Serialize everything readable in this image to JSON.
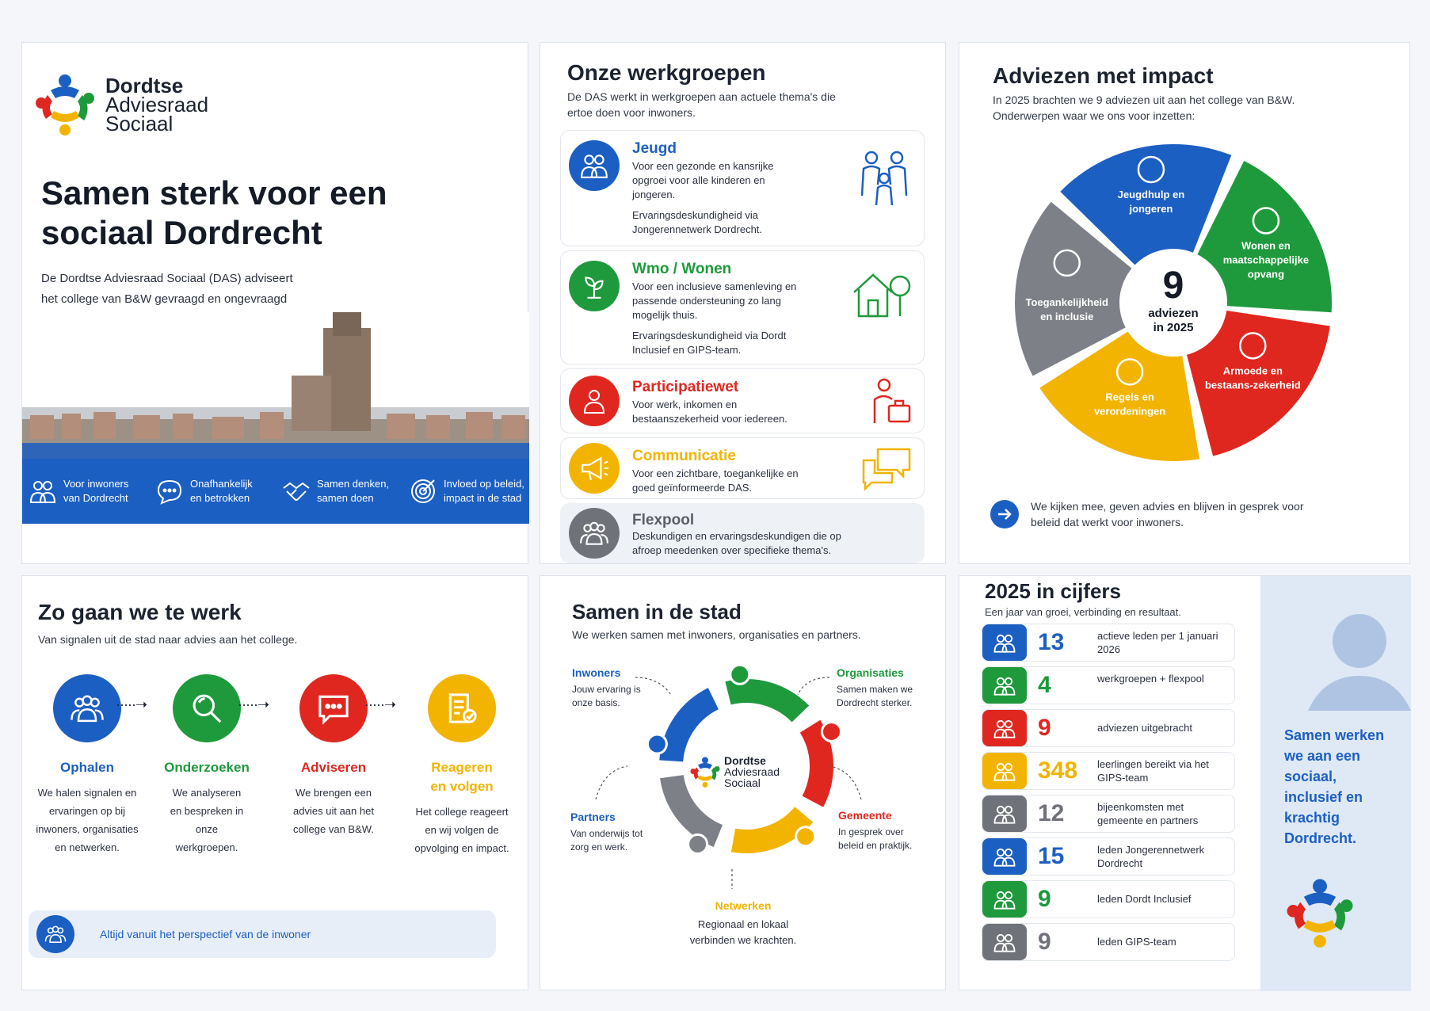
{
  "brand": {
    "line1": "Dordtse",
    "line2": "Adviesraad",
    "line3": "Sociaal"
  },
  "hero": {
    "title": "Samen sterk voor een sociaal Dordrecht",
    "text": "De Dordtse Adviesraad Sociaal (DAS) adviseert het college van B&W gevraagd en ongevraagd over alles wat te maken heeft met het sociaal domein – vanuit het perspectief van inwoners.",
    "bar": [
      {
        "l1": "Voor inwoners",
        "l2": "van Dordrecht",
        "icon": "people-icon"
      },
      {
        "l1": "Onafhankelijk",
        "l2": "en betrokken",
        "icon": "chat-bubble-icon"
      },
      {
        "l1": "Samen denken,",
        "l2": "samen doen",
        "icon": "handshake-icon"
      },
      {
        "l1": "Invloed op beleid,",
        "l2": "impact in de stad",
        "icon": "target-icon"
      }
    ]
  },
  "werkgroepen": {
    "title": "Onze werkgroepen",
    "subtitle": "De DAS werkt in werkgroepen aan actuele thema's die ertoe doen voor inwoners.",
    "items": [
      {
        "title": "Jeugd",
        "color": "#1c5fc2",
        "text": "Voor een gezonde en kansrijke opgroei voor alle kinderen en jongeren.",
        "extra": "Ervaringsdeskundigheid via Jongerennetwerk Dordrecht.",
        "icon": "family-icon"
      },
      {
        "title": "Wmo / Wonen",
        "color": "#1e9a3c",
        "text": "Voor een inclusieve samenleving en passende ondersteuning zo lang mogelijk thuis.",
        "extra": "Ervaringsdeskundigheid via Dordt Inclusief en GIPS-team.",
        "icon": "house-tree-icon"
      },
      {
        "title": "Participatiewet",
        "color": "#e0271f",
        "text": "Voor werk, inkomen en bestaanszekerheid voor iedereen.",
        "extra": "",
        "icon": "worker-briefcase-icon"
      },
      {
        "title": "Communicatie",
        "color": "#f2b400",
        "text": "Voor een zichtbare, toegankelijke en goed geïnformeerde DAS.",
        "extra": "",
        "icon": "megaphone-icon"
      },
      {
        "title": "Flexpool",
        "color": "#6f7278",
        "text": "Deskundigen en ervaringsdeskundigen die op afroep meedenken over specifieke thema's.",
        "extra": "",
        "icon": "group-icon"
      }
    ]
  },
  "adviezen": {
    "title": "Adviezen met impact",
    "subtitle": "In 2025 brachten we 9 adviezen uit aan het college van B&W. Onderwerpen waar we ons voor inzetten:",
    "center_num": "9",
    "center_l1": "adviezen",
    "center_l2": "in 2025",
    "segments": [
      {
        "label": "Jeugdhulp en jongeren",
        "color": "#1c5fc2",
        "icon": "family-icon"
      },
      {
        "label": "Wonen en maatschappelijke opvang",
        "color": "#1e9a3c",
        "icon": "house-icon"
      },
      {
        "label": "Armoede en bestaans-zekerheid",
        "color": "#e0271f",
        "icon": "euro-icon"
      },
      {
        "label": "Regels en verordeningen",
        "color": "#f2b400",
        "icon": "document-icon"
      },
      {
        "label": "Toegankelijkheid en inclusie",
        "color": "#7d8087",
        "icon": "chat-bubbles-icon"
      }
    ],
    "footer": "We kijken mee, geven advies en blijven in gesprek voor beleid dat werkt voor inwoners."
  },
  "werkwijze": {
    "title": "Zo gaan we te werk",
    "subtitle": "Van signalen uit de stad naar advies aan het college.",
    "steps": [
      {
        "title": "Ophalen",
        "color": "#1c5fc2",
        "text": "We halen signalen en ervaringen op bij inwoners, organisaties en netwerken.",
        "icon": "people-icon"
      },
      {
        "title": "Onderzoeken",
        "color": "#1e9a3c",
        "text": "We analyseren en bespreken in onze werkgroepen.",
        "icon": "magnifier-icon"
      },
      {
        "title": "Adviseren",
        "color": "#e0271f",
        "text": "We brengen een advies uit aan het college van B&W.",
        "icon": "chat-icon"
      },
      {
        "title": "Reageren en volgen",
        "color": "#f2b400",
        "text": "Het college reageert en wij volgen de opvolging en impact.",
        "icon": "checklist-icon"
      }
    ],
    "callout": "Altijd vanuit het perspectief van de inwoner"
  },
  "stad": {
    "title": "Samen in de stad",
    "subtitle": "We werken samen met inwoners, organisaties en partners.",
    "labels": [
      {
        "title": "Inwoners",
        "text": "Jouw ervaring is onze basis.",
        "color": "#1c5fc2"
      },
      {
        "title": "Organisaties",
        "text": "Samen maken we Dordrecht sterker.",
        "color": "#1e9a3c"
      },
      {
        "title": "Partners",
        "text": "Van onderwijs tot zorg en werk.",
        "color": "#1c5fc2"
      },
      {
        "title": "Gemeente",
        "text": "In gesprek over beleid en praktijk.",
        "color": "#e0271f"
      },
      {
        "title": "Netwerken",
        "text": "Regionaal en lokaal verbinden we krachten.",
        "color": "#f2b400"
      }
    ]
  },
  "cijfers": {
    "title": "2025 in cijfers",
    "subtitle": "Een jaar van groei, verbinding en resultaat.",
    "stats": [
      {
        "num": "13",
        "label": "actieve leden per 1 januari 2026",
        "color": "#1c5fc2",
        "icon": "group-icon"
      },
      {
        "num": "4",
        "label": "werkgroepen + flexpool",
        "color": "#1e9a3c",
        "icon": "group-icon"
      },
      {
        "num": "9",
        "label": "adviezen uitgebracht",
        "color": "#e0271f",
        "icon": "document-icon"
      },
      {
        "num": "348",
        "label": "leerlingen bereikt via het GIPS-team",
        "color": "#f2b400",
        "icon": "group-icon"
      },
      {
        "num": "12",
        "label": "bijeenkomsten met gemeente en partners",
        "color": "#6f7278",
        "icon": "chat-icon"
      },
      {
        "num": "15",
        "label": "leden Jongerennetwerk Dordrecht",
        "color": "#1c5fc2",
        "icon": "group-icon"
      },
      {
        "num": "9",
        "label": "leden Dordt Inclusief",
        "color": "#1e9a3c",
        "icon": "inclusion-icon"
      },
      {
        "num": "9",
        "label": "leden GIPS-team",
        "color": "#6f7278",
        "icon": "chat-icon"
      }
    ],
    "side_text": "Samen werken we aan een sociaal, inclusief en krachtig Dordrecht."
  }
}
